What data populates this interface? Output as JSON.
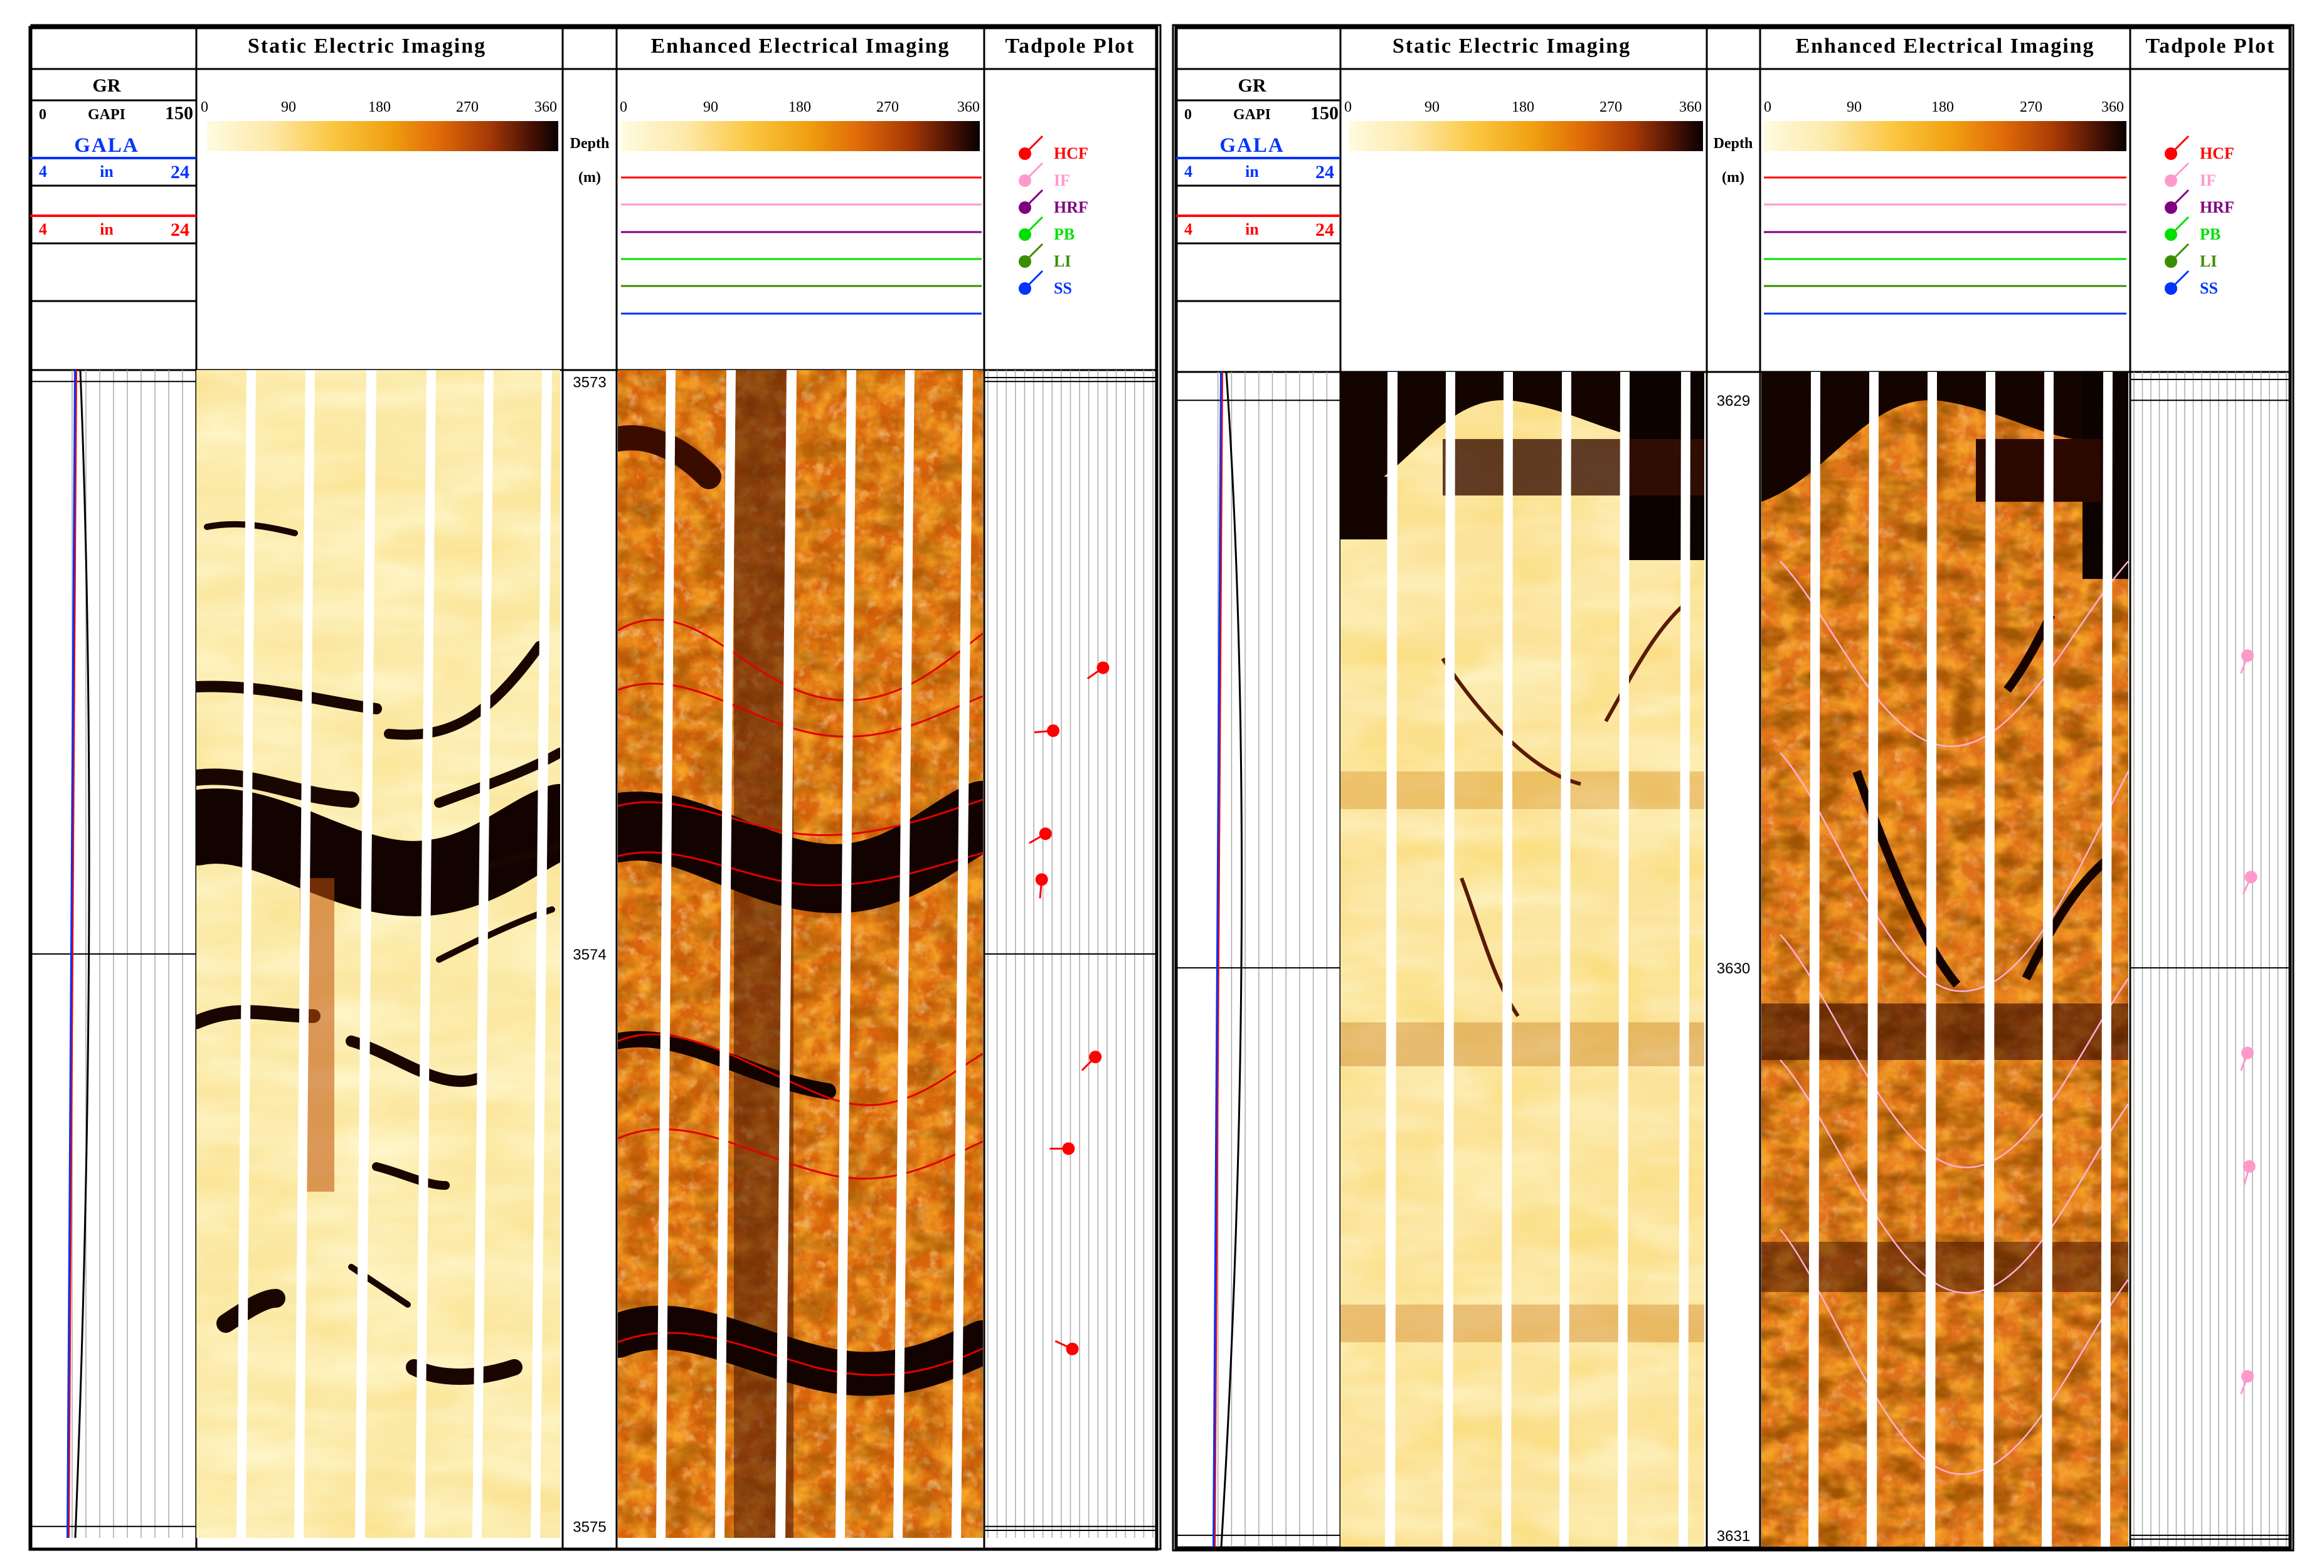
{
  "chart_data": {
    "type": "well-log",
    "legend": [
      {
        "code": "HCF",
        "color": "#ff0000"
      },
      {
        "code": "IF",
        "color": "#ff99cc"
      },
      {
        "code": "HRF",
        "color": "#800080"
      },
      {
        "code": "PB",
        "color": "#00e000"
      },
      {
        "code": "LI",
        "color": "#3c8c00"
      },
      {
        "code": "SS",
        "color": "#0033ff"
      }
    ],
    "colorbar": {
      "ticks": [
        "0",
        "90",
        "180",
        "270",
        "360"
      ]
    },
    "panels": [
      {
        "headers": {
          "gr": "GR",
          "static": "Static Electric Imaging",
          "enhanced": "Enhanced Electrical Imaging",
          "tadpole": "Tadpole Plot",
          "depth": "Depth",
          "depth_unit": "(m)"
        },
        "gr_scale": {
          "min": "0",
          "unit": "GAPI",
          "max": "150"
        },
        "gala": "GALA",
        "caliper1": {
          "min": "4",
          "unit": "in",
          "max": "24"
        },
        "caliper2": {
          "min": "4",
          "unit": "in",
          "max": "24"
        },
        "depth_range": [
          3572.98,
          3575.02
        ],
        "depth_ticks": [
          "3573",
          "3574",
          "3575"
        ],
        "tadpole_code": "HCF",
        "tadpoles": [
          {
            "depth": 3573.5,
            "dip": 62,
            "azimuth": 235
          },
          {
            "depth": 3573.61,
            "dip": 36,
            "azimuth": 265
          },
          {
            "depth": 3573.79,
            "dip": 32,
            "azimuth": 240
          },
          {
            "depth": 3573.87,
            "dip": 30,
            "azimuth": 185
          },
          {
            "depth": 3574.18,
            "dip": 58,
            "azimuth": 225
          },
          {
            "depth": 3574.34,
            "dip": 44,
            "azimuth": 270
          },
          {
            "depth": 3574.69,
            "dip": 46,
            "azimuth": 295
          }
        ]
      },
      {
        "headers": {
          "gr": "GR",
          "static": "Static Electric Imaging",
          "enhanced": "Enhanced Electrical Imaging",
          "tadpole": "Tadpole Plot",
          "depth": "Depth",
          "depth_unit": "(m)"
        },
        "gr_scale": {
          "min": "0",
          "unit": "GAPI",
          "max": "150"
        },
        "gala": "GALA",
        "caliper1": {
          "min": "4",
          "unit": "in",
          "max": "24"
        },
        "caliper2": {
          "min": "4",
          "unit": "in",
          "max": "24"
        },
        "depth_range": [
          3628.95,
          3631.02
        ],
        "depth_ticks": [
          "3629",
          "3630",
          "3631"
        ],
        "tadpole_code": "IF",
        "tadpoles": [
          {
            "depth": 3629.45,
            "dip": 66,
            "azimuth": 200
          },
          {
            "depth": 3629.84,
            "dip": 68,
            "azimuth": 205
          },
          {
            "depth": 3630.15,
            "dip": 66,
            "azimuth": 200
          },
          {
            "depth": 3630.35,
            "dip": 67,
            "azimuth": 195
          },
          {
            "depth": 3630.72,
            "dip": 66,
            "azimuth": 200
          }
        ]
      }
    ]
  }
}
